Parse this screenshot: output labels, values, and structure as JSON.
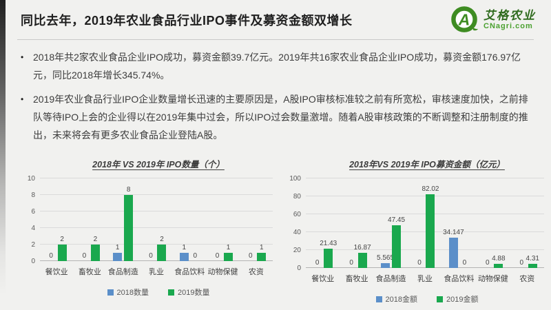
{
  "header": {
    "title": "同比去年，2019年农业食品行业IPO事件及募资金额双增长",
    "logo": {
      "letter": "A",
      "cn": "艾格农业",
      "url": "CNagri.com"
    }
  },
  "bullets": [
    "2018年共2家农业食品企业IPO成功，募资金额39.7亿元。2019年共16家农业食品企业IPO成功，募资金额176.97亿元，同比2018年增长345.74%。",
    "2019年农业食品行业IPO企业数量增长迅速的主要原因是，A股IPO审核标准较之前有所宽松，审核速度加快，之前排队等待IPO上会的企业得以在2019年集中过会，所以IPO过会数量激增。随着A股审核政策的不断调整和注册制度的推出，未来将会有更多农业食品企业登陆A股。"
  ],
  "colors": {
    "bar_blue": "#5b8fc9",
    "bar_green": "#1aa84e",
    "logo_green": "#3e8c22",
    "background": "#f1f1ef"
  },
  "chart_data": [
    {
      "type": "bar",
      "title": "2018年 VS 2019年  IPO数量（个）",
      "categories": [
        "餐饮业",
        "畜牧业",
        "食品制造",
        "乳业",
        "食品饮料",
        "动物保健",
        "农资"
      ],
      "series": [
        {
          "name": "2018数量",
          "color": "#5b8fc9",
          "values": [
            0,
            0,
            1,
            0,
            1,
            0,
            0
          ],
          "labels": [
            "0",
            "0",
            "1",
            "0",
            "1",
            "0",
            "0"
          ]
        },
        {
          "name": "2019数量",
          "color": "#1aa84e",
          "values": [
            2,
            2,
            8,
            2,
            0,
            1,
            1
          ],
          "labels": [
            "2",
            "2",
            "8",
            "2",
            "0",
            "1",
            "1"
          ]
        }
      ],
      "xlabel": "",
      "ylabel": "",
      "ylim": [
        0,
        10
      ],
      "yticks": [
        0,
        2,
        4,
        6,
        8,
        10
      ],
      "grid": true,
      "legend_position": "bottom"
    },
    {
      "type": "bar",
      "title": "2018年VS 2019年  IPO募资金额（亿元）",
      "categories": [
        "餐饮业",
        "畜牧业",
        "食品制造",
        "乳业",
        "食品饮料",
        "动物保健",
        "农资"
      ],
      "series": [
        {
          "name": "2018金额",
          "color": "#5b8fc9",
          "values": [
            0,
            0,
            5.565,
            0,
            34.147,
            0,
            0
          ],
          "labels": [
            "0",
            "0",
            "5.565",
            "0",
            "34.147",
            "0",
            "0"
          ]
        },
        {
          "name": "2019金额",
          "color": "#1aa84e",
          "values": [
            21.43,
            16.87,
            47.45,
            82.02,
            0,
            4.88,
            4.31
          ],
          "labels": [
            "21.43",
            "16.87",
            "47.45",
            "82.02",
            "0",
            "4.88",
            "4.31"
          ]
        }
      ],
      "xlabel": "",
      "ylabel": "",
      "ylim": [
        0,
        100
      ],
      "yticks": [
        0,
        20,
        40,
        60,
        80,
        100
      ],
      "grid": true,
      "legend_position": "bottom"
    }
  ]
}
